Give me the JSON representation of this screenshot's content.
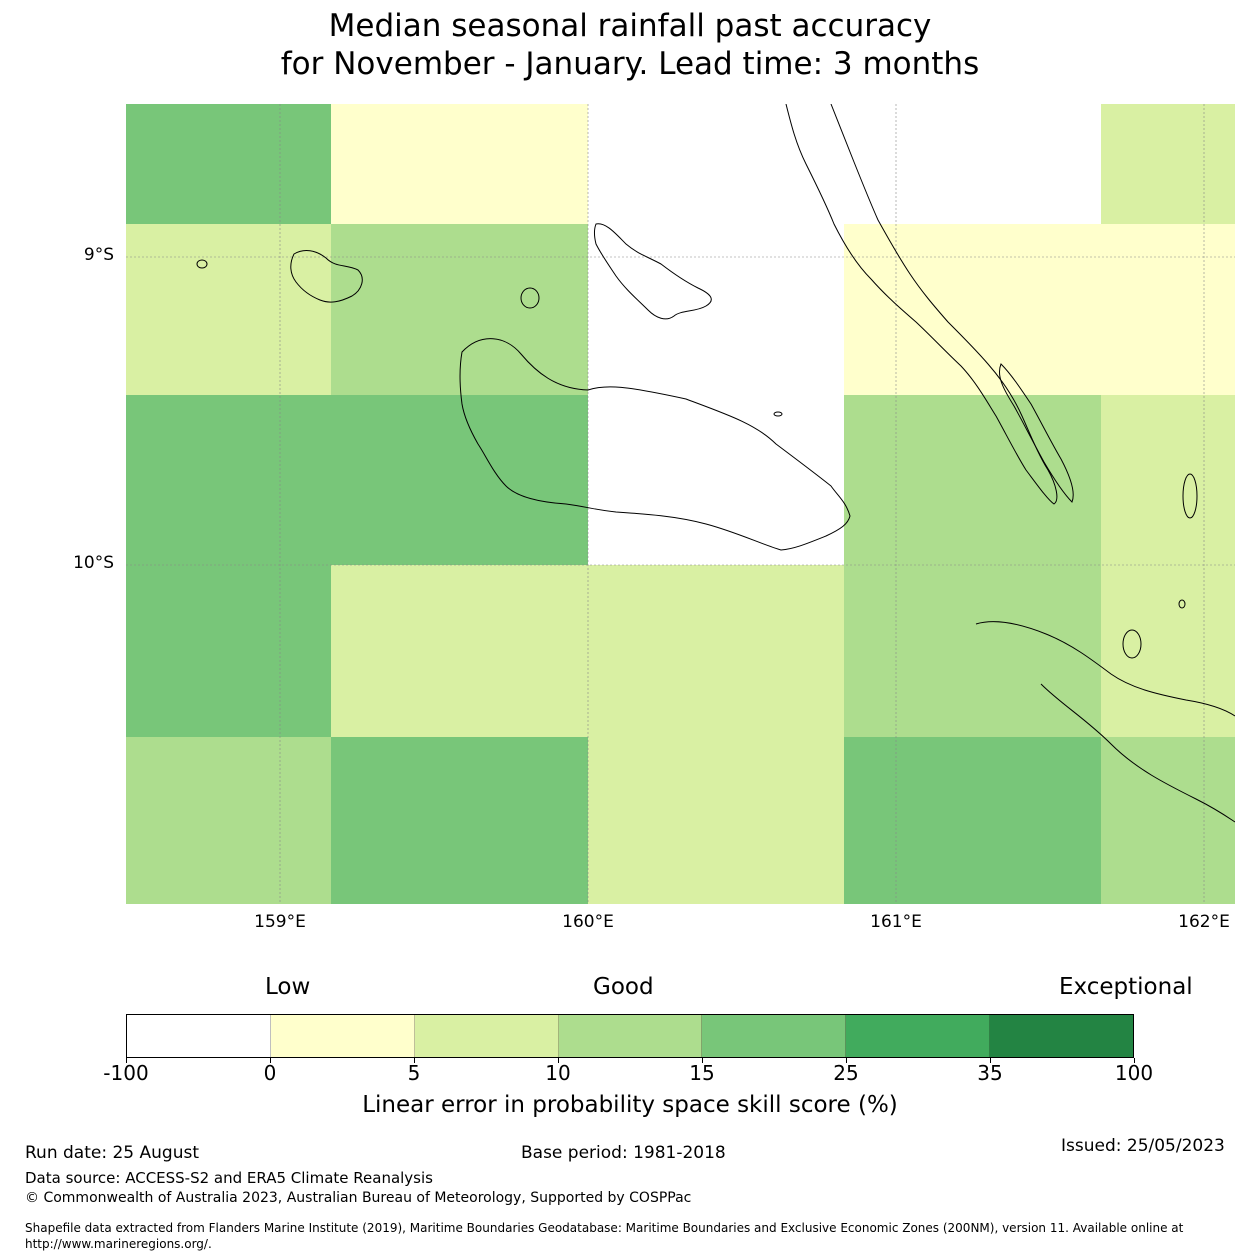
{
  "title_line1": "Median seasonal rainfall past accuracy",
  "title_line2": "for November - January. Lead time: 3 months",
  "map": {
    "lat_labels": [
      "9°S",
      "10°S"
    ],
    "lon_labels": [
      "159°E",
      "160°E",
      "161°E",
      "162°E"
    ],
    "colors": {
      "c0": "#ffffff",
      "c1": "#ffffcc",
      "c2": "#d9f0a3",
      "c3": "#addd8e",
      "c4": "#78c679",
      "c5": "#41ab5d",
      "c6": "#238443"
    },
    "grid_cells": [
      {
        "row": 0,
        "col": 0,
        "class": "c4"
      },
      {
        "row": 0,
        "col": 1,
        "class": "c1"
      },
      {
        "row": 0,
        "col": 2,
        "class": "c0"
      },
      {
        "row": 0,
        "col": 3,
        "class": "c0"
      },
      {
        "row": 0,
        "col": 4,
        "class": "c2"
      },
      {
        "row": 1,
        "col": 0,
        "class": "c2"
      },
      {
        "row": 1,
        "col": 1,
        "class": "c3"
      },
      {
        "row": 1,
        "col": 2,
        "class": "c0"
      },
      {
        "row": 1,
        "col": 3,
        "class": "c1"
      },
      {
        "row": 1,
        "col": 4,
        "class": "c1"
      },
      {
        "row": 2,
        "col": 0,
        "class": "c4"
      },
      {
        "row": 2,
        "col": 1,
        "class": "c4"
      },
      {
        "row": 2,
        "col": 2,
        "class": "c0"
      },
      {
        "row": 2,
        "col": 3,
        "class": "c3"
      },
      {
        "row": 2,
        "col": 4,
        "class": "c2"
      },
      {
        "row": 3,
        "col": 0,
        "class": "c4"
      },
      {
        "row": 3,
        "col": 1,
        "class": "c2"
      },
      {
        "row": 3,
        "col": 2,
        "class": "c2"
      },
      {
        "row": 3,
        "col": 3,
        "class": "c3"
      },
      {
        "row": 3,
        "col": 4,
        "class": "c2"
      },
      {
        "row": 4,
        "col": 0,
        "class": "c3"
      },
      {
        "row": 4,
        "col": 1,
        "class": "c4"
      },
      {
        "row": 4,
        "col": 2,
        "class": "c2"
      },
      {
        "row": 4,
        "col": 3,
        "class": "c4"
      },
      {
        "row": 4,
        "col": 4,
        "class": "c3"
      }
    ]
  },
  "legend": {
    "low": "Low",
    "good": "Good",
    "exceptional": "Exceptional",
    "ticks": [
      "-100",
      "0",
      "5",
      "10",
      "15",
      "25",
      "35",
      "100"
    ],
    "colors": [
      "#ffffff",
      "#ffffcc",
      "#d9f0a3",
      "#addd8e",
      "#78c679",
      "#41ab5d",
      "#238443"
    ],
    "label": "Linear error in probability space skill score (%)"
  },
  "footer": {
    "run_date": "Run date: 25 August",
    "base_period": "Base period: 1981-2018",
    "issued": "Issued: 25/05/2023",
    "data_source": "Data source: ACCESS-S2 and ERA5 Climate Reanalysis",
    "copyright": "© Commonwealth of Australia 2023, Australian Bureau of Meteorology, Supported by COSPPac",
    "shapefile": "Shapefile data extracted from Flanders Marine Institute (2019), Maritime Boundaries Geodatabase: Maritime Boundaries and Exclusive Economic Zones (200NM), version 11. Available online at http://www.marineregions.org/."
  }
}
